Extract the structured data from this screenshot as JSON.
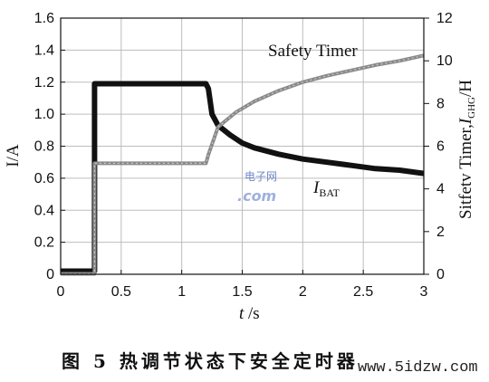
{
  "chart_data": {
    "type": "line",
    "xlabel_italic": "t",
    "xlabel_unit": " /s",
    "ylabel": "I/A",
    "y2label": "Sitfetv Timer,",
    "y2label_i": "I",
    "y2label_sub": "GHG",
    "y2label_tail": "/H",
    "xlim": [
      0,
      3
    ],
    "ylim": [
      0,
      1.6
    ],
    "y2lim": [
      0,
      12
    ],
    "xticks": [
      "0",
      "0.5",
      "1",
      "1.5",
      "2",
      "2.5",
      "3"
    ],
    "yticks": [
      "0",
      "0.2",
      "0.4",
      "0.6",
      "0.8",
      "1.0",
      "1.2",
      "1.4",
      "1.6"
    ],
    "y2ticks": [
      "0",
      "2",
      "4",
      "6",
      "8",
      "10",
      "12"
    ],
    "grid": true,
    "series": [
      {
        "name": "I",
        "name_sub": "BAT",
        "axis": "left",
        "color": "#111111",
        "x": [
          0,
          0.28,
          0.28,
          0.5,
          0.8,
          1.0,
          1.2,
          1.22,
          1.25,
          1.3,
          1.4,
          1.5,
          1.6,
          1.8,
          2.0,
          2.2,
          2.4,
          2.6,
          2.8,
          3.0
        ],
        "y": [
          0.02,
          0.02,
          1.19,
          1.19,
          1.19,
          1.19,
          1.19,
          1.16,
          1.0,
          0.93,
          0.87,
          0.82,
          0.79,
          0.75,
          0.72,
          0.7,
          0.68,
          0.66,
          0.65,
          0.63
        ]
      },
      {
        "name": "Safety Timer",
        "axis": "right",
        "color": "#8a8a8a",
        "x": [
          0,
          0.28,
          0.28,
          0.5,
          0.8,
          1.0,
          1.2,
          1.22,
          1.3,
          1.45,
          1.6,
          1.8,
          2.0,
          2.2,
          2.4,
          2.6,
          2.8,
          3.0
        ],
        "y": [
          0.02,
          0.02,
          5.2,
          5.2,
          5.2,
          5.2,
          5.2,
          5.6,
          6.9,
          7.6,
          8.1,
          8.6,
          9.0,
          9.3,
          9.55,
          9.8,
          10.0,
          10.25
        ]
      }
    ]
  },
  "caption": "图 5  热调节状态下安全定时器",
  "watermark": {
    "line1": "电子网",
    "line2": ".com",
    "site": "www.5idzw.com"
  }
}
